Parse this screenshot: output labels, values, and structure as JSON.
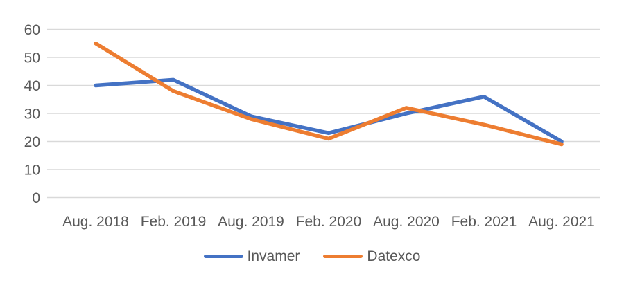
{
  "chart_data": {
    "type": "line",
    "title": "",
    "xlabel": "",
    "ylabel": "",
    "categories": [
      "Aug. 2018",
      "Feb. 2019",
      "Aug. 2019",
      "Feb. 2020",
      "Aug. 2020",
      "Feb. 2021",
      "Aug. 2021"
    ],
    "series": [
      {
        "name": "Invamer",
        "color": "#4472C4",
        "values": [
          40,
          42,
          29,
          23,
          30,
          36,
          20
        ]
      },
      {
        "name": "Datexco",
        "color": "#ED7D31",
        "values": [
          55,
          38,
          28,
          21,
          32,
          26,
          19
        ]
      }
    ],
    "yticks": [
      0,
      10,
      20,
      30,
      40,
      50,
      60
    ],
    "ylim": [
      0,
      60
    ],
    "grid": true,
    "legend_position": "bottom"
  },
  "colors": {
    "gridline": "#D9D9D9",
    "axis_text": "#595959",
    "background": "#FFFFFF"
  }
}
